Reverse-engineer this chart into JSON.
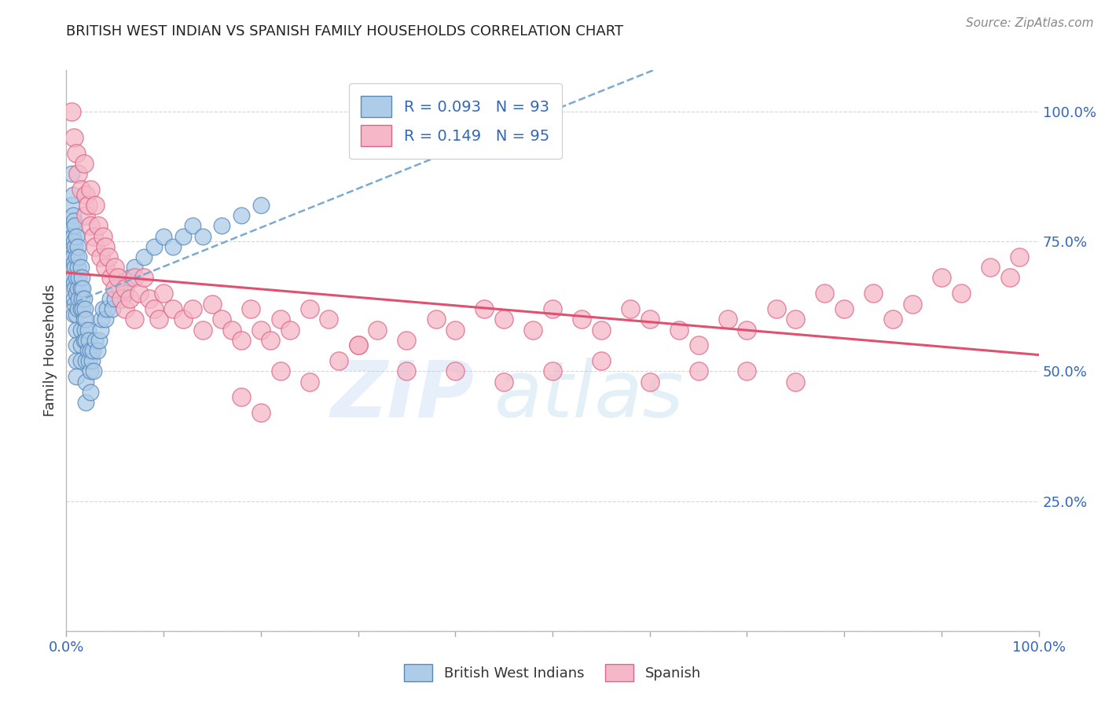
{
  "title": "BRITISH WEST INDIAN VS SPANISH FAMILY HOUSEHOLDS CORRELATION CHART",
  "source_text": "Source: ZipAtlas.com",
  "ylabel": "Family Households",
  "watermark_zip": "ZIP",
  "watermark_atlas": "atlas",
  "legend_blue_label": "British West Indians",
  "legend_pink_label": "Spanish",
  "blue_R": 0.093,
  "blue_N": 93,
  "pink_R": 0.149,
  "pink_N": 95,
  "xlim": [
    0.0,
    1.0
  ],
  "ylim": [
    0.0,
    1.08
  ],
  "blue_color": "#aecce8",
  "blue_edge_color": "#5588bb",
  "pink_color": "#f5b8c8",
  "pink_edge_color": "#dd6688",
  "blue_trend_color": "#7aaad0",
  "pink_trend_color": "#e05070",
  "background_color": "#ffffff",
  "grid_color": "#cccccc",
  "title_color": "#222222",
  "blue_scatter_x": [
    0.005,
    0.005,
    0.005,
    0.005,
    0.005,
    0.005,
    0.007,
    0.007,
    0.007,
    0.007,
    0.007,
    0.008,
    0.008,
    0.008,
    0.008,
    0.008,
    0.008,
    0.009,
    0.009,
    0.009,
    0.009,
    0.009,
    0.01,
    0.01,
    0.01,
    0.01,
    0.01,
    0.01,
    0.01,
    0.01,
    0.01,
    0.012,
    0.012,
    0.012,
    0.012,
    0.013,
    0.013,
    0.013,
    0.015,
    0.015,
    0.015,
    0.015,
    0.015,
    0.015,
    0.016,
    0.016,
    0.017,
    0.017,
    0.018,
    0.018,
    0.018,
    0.019,
    0.019,
    0.02,
    0.02,
    0.02,
    0.02,
    0.02,
    0.022,
    0.022,
    0.023,
    0.023,
    0.025,
    0.025,
    0.025,
    0.026,
    0.027,
    0.028,
    0.03,
    0.032,
    0.034,
    0.035,
    0.036,
    0.038,
    0.04,
    0.042,
    0.045,
    0.047,
    0.05,
    0.055,
    0.06,
    0.065,
    0.07,
    0.08,
    0.09,
    0.1,
    0.11,
    0.12,
    0.13,
    0.14,
    0.16,
    0.18,
    0.2
  ],
  "blue_scatter_y": [
    0.88,
    0.82,
    0.78,
    0.75,
    0.72,
    0.68,
    0.84,
    0.8,
    0.76,
    0.72,
    0.68,
    0.79,
    0.75,
    0.71,
    0.67,
    0.64,
    0.61,
    0.78,
    0.74,
    0.7,
    0.66,
    0.63,
    0.76,
    0.72,
    0.68,
    0.65,
    0.61,
    0.58,
    0.55,
    0.52,
    0.49,
    0.74,
    0.7,
    0.66,
    0.62,
    0.72,
    0.68,
    0.64,
    0.7,
    0.66,
    0.62,
    0.58,
    0.55,
    0.52,
    0.68,
    0.64,
    0.66,
    0.62,
    0.64,
    0.6,
    0.56,
    0.62,
    0.58,
    0.6,
    0.56,
    0.52,
    0.48,
    0.44,
    0.58,
    0.54,
    0.56,
    0.52,
    0.54,
    0.5,
    0.46,
    0.52,
    0.54,
    0.5,
    0.56,
    0.54,
    0.56,
    0.58,
    0.6,
    0.62,
    0.6,
    0.62,
    0.64,
    0.62,
    0.64,
    0.66,
    0.65,
    0.68,
    0.7,
    0.72,
    0.74,
    0.76,
    0.74,
    0.76,
    0.78,
    0.76,
    0.78,
    0.8,
    0.82
  ],
  "pink_scatter_x": [
    0.005,
    0.008,
    0.01,
    0.012,
    0.015,
    0.018,
    0.02,
    0.02,
    0.022,
    0.025,
    0.025,
    0.028,
    0.03,
    0.03,
    0.033,
    0.035,
    0.038,
    0.04,
    0.04,
    0.043,
    0.046,
    0.05,
    0.05,
    0.053,
    0.056,
    0.06,
    0.06,
    0.065,
    0.07,
    0.07,
    0.075,
    0.08,
    0.085,
    0.09,
    0.095,
    0.1,
    0.11,
    0.12,
    0.13,
    0.14,
    0.15,
    0.16,
    0.17,
    0.18,
    0.19,
    0.2,
    0.21,
    0.22,
    0.23,
    0.25,
    0.27,
    0.3,
    0.32,
    0.35,
    0.38,
    0.4,
    0.43,
    0.45,
    0.48,
    0.5,
    0.53,
    0.55,
    0.58,
    0.6,
    0.63,
    0.65,
    0.68,
    0.7,
    0.73,
    0.75,
    0.78,
    0.8,
    0.83,
    0.85,
    0.87,
    0.9,
    0.92,
    0.95,
    0.97,
    0.98,
    0.18,
    0.2,
    0.22,
    0.25,
    0.28,
    0.3,
    0.35,
    0.4,
    0.45,
    0.5,
    0.55,
    0.6,
    0.65,
    0.7,
    0.75
  ],
  "pink_scatter_y": [
    1.0,
    0.95,
    0.92,
    0.88,
    0.85,
    0.9,
    0.84,
    0.8,
    0.82,
    0.78,
    0.85,
    0.76,
    0.82,
    0.74,
    0.78,
    0.72,
    0.76,
    0.74,
    0.7,
    0.72,
    0.68,
    0.7,
    0.66,
    0.68,
    0.64,
    0.66,
    0.62,
    0.64,
    0.68,
    0.6,
    0.65,
    0.68,
    0.64,
    0.62,
    0.6,
    0.65,
    0.62,
    0.6,
    0.62,
    0.58,
    0.63,
    0.6,
    0.58,
    0.56,
    0.62,
    0.58,
    0.56,
    0.6,
    0.58,
    0.62,
    0.6,
    0.55,
    0.58,
    0.56,
    0.6,
    0.58,
    0.62,
    0.6,
    0.58,
    0.62,
    0.6,
    0.58,
    0.62,
    0.6,
    0.58,
    0.55,
    0.6,
    0.58,
    0.62,
    0.6,
    0.65,
    0.62,
    0.65,
    0.6,
    0.63,
    0.68,
    0.65,
    0.7,
    0.68,
    0.72,
    0.45,
    0.42,
    0.5,
    0.48,
    0.52,
    0.55,
    0.5,
    0.5,
    0.48,
    0.5,
    0.52,
    0.48,
    0.5,
    0.5,
    0.48
  ]
}
